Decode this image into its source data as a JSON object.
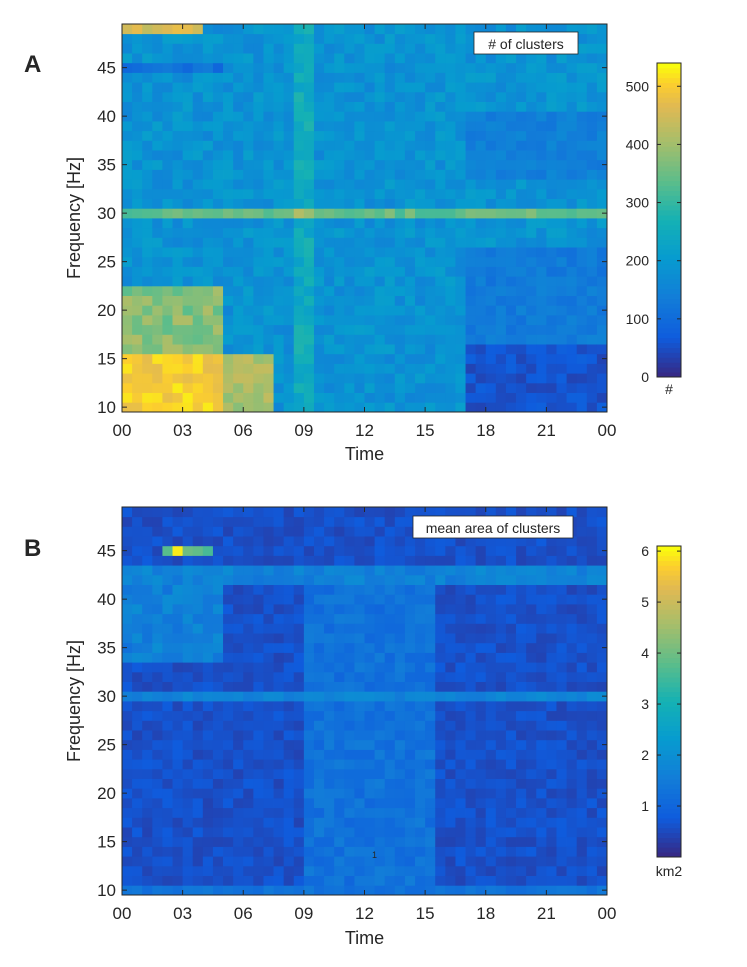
{
  "chart_data": [
    {
      "type": "heatmap",
      "panel_label": "A",
      "annotation": "# of clusters",
      "title": "",
      "xlabel": "Time",
      "ylabel": "Frequency [Hz]",
      "xticks": [
        "00",
        "03",
        "06",
        "09",
        "12",
        "15",
        "18",
        "21",
        "00"
      ],
      "xrange": [
        0,
        24
      ],
      "yticks": [
        10,
        15,
        20,
        25,
        30,
        35,
        40,
        45
      ],
      "yrange": [
        9.5,
        49.5
      ],
      "time_bins": 48,
      "frequency_bins": 40,
      "colorbar": {
        "label": "#",
        "ticks": [
          0,
          100,
          200,
          300,
          400,
          500
        ],
        "range": [
          0,
          540
        ],
        "colormap": "parula"
      },
      "description_of_values": {
        "low_freq_night_10_15Hz_00_to_06": 500,
        "band_30Hz_line": 330,
        "evening_15_18Hz_after_17h": 40,
        "typical_background": 180
      }
    },
    {
      "type": "heatmap",
      "panel_label": "B",
      "annotation": "mean area of clusters",
      "title": "",
      "xlabel": "Time",
      "ylabel": "Frequency [Hz]",
      "xticks": [
        "00",
        "03",
        "06",
        "09",
        "12",
        "15",
        "18",
        "21",
        "00"
      ],
      "xrange": [
        0,
        24
      ],
      "yticks": [
        10,
        15,
        20,
        25,
        30,
        35,
        40,
        45
      ],
      "yrange": [
        9.5,
        49.5
      ],
      "time_bins": 48,
      "frequency_bins": 40,
      "colorbar": {
        "label": "km2",
        "ticks": [
          1,
          2,
          3,
          4,
          5,
          6
        ],
        "range": [
          0,
          6.1
        ],
        "colormap": "parula"
      },
      "stray_mark": "1",
      "description_of_values": {
        "peak_45Hz_around_03h": 6.0,
        "band_30Hz_line": 2.0,
        "midday_09_to_15h": 1.3,
        "typical_background": 0.5
      }
    }
  ],
  "colors": {
    "axis": "#262626",
    "background": "#ffffff"
  }
}
